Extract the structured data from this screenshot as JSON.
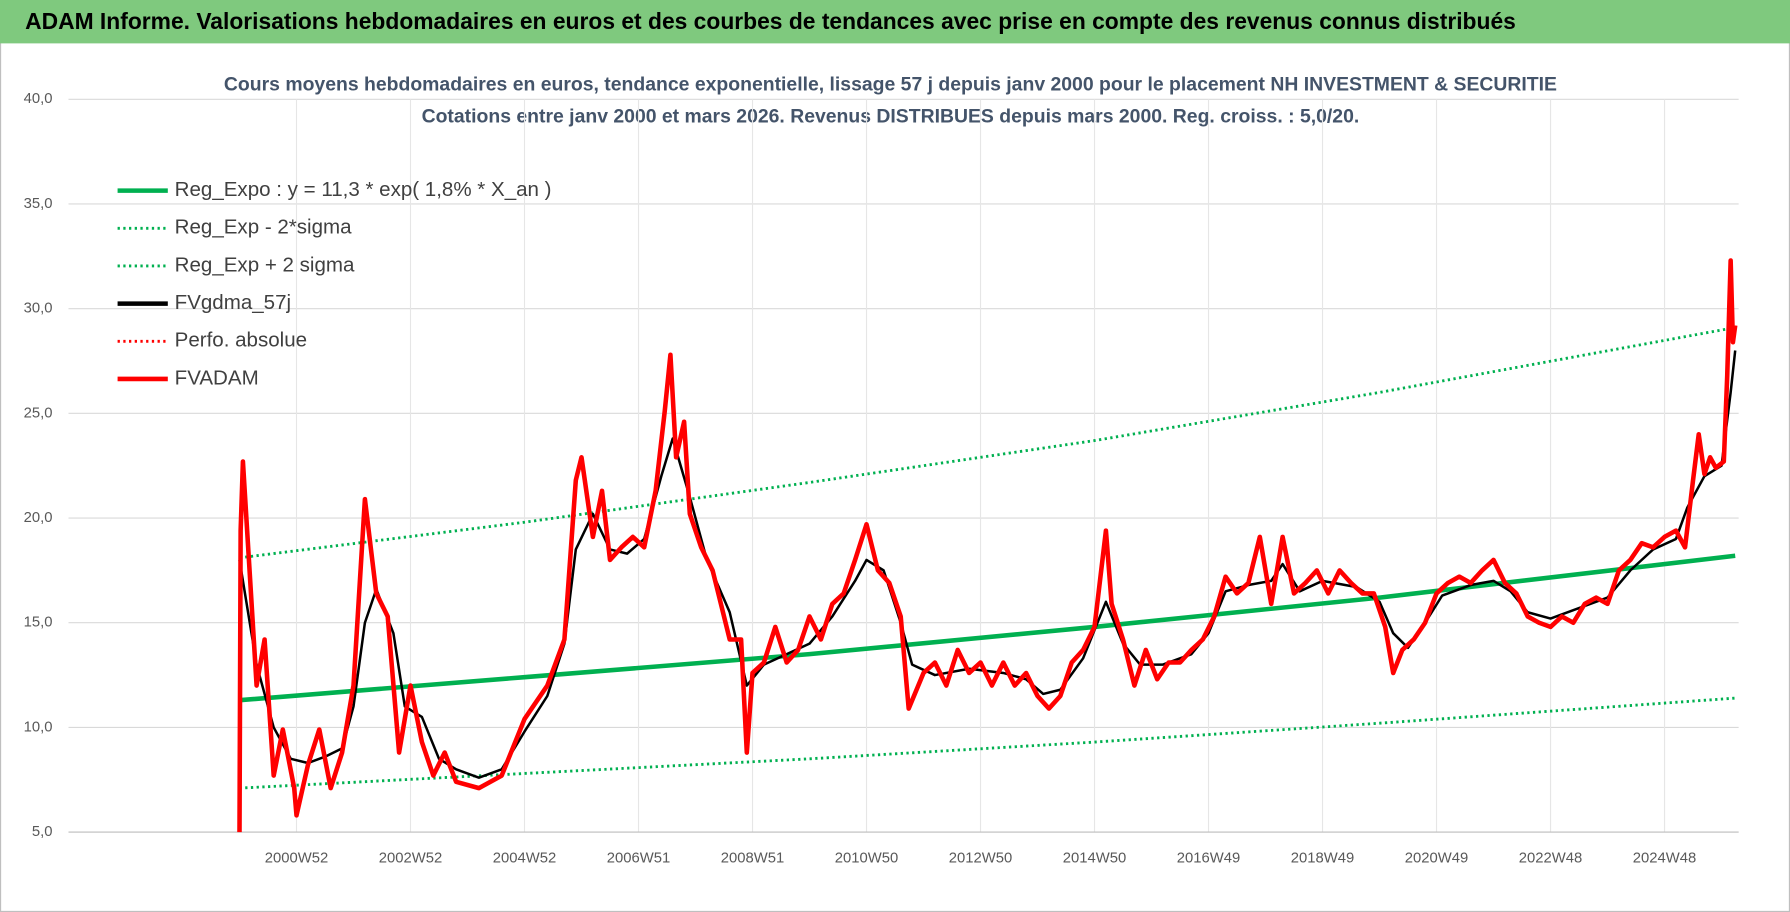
{
  "page_title": "ADAM Informe. Valorisations hebdomadaires en euros et des courbes de tendances avec prise en compte des revenus connus distribués",
  "chart_data": {
    "type": "line",
    "title": "Cours moyens hebdomadaires en euros, tendance exponentielle, lissage 57 j depuis janv 2000  pour le placement NH INVESTMENT & SECURITIE",
    "subtitle": "Cotations entre janv 2000 et mars 2026. Revenus DISTRIBUES depuis mars 2000. Reg. croiss. : 5,0/20.",
    "xlim": [
      1997,
      2026.3
    ],
    "xticks": [
      {
        "value": 2001,
        "label": "2000W52"
      },
      {
        "value": 2003,
        "label": "2002W52"
      },
      {
        "value": 2005,
        "label": "2004W52"
      },
      {
        "value": 2007,
        "label": "2006W51"
      },
      {
        "value": 2009,
        "label": "2008W51"
      },
      {
        "value": 2011,
        "label": "2010W50"
      },
      {
        "value": 2013,
        "label": "2012W50"
      },
      {
        "value": 2015,
        "label": "2014W50"
      },
      {
        "value": 2017,
        "label": "2016W49"
      },
      {
        "value": 2019,
        "label": "2018W49"
      },
      {
        "value": 2021,
        "label": "2020W49"
      },
      {
        "value": 2023,
        "label": "2022W48"
      },
      {
        "value": 2025,
        "label": "2024W48"
      }
    ],
    "ylim": [
      5,
      40
    ],
    "yticks": [
      {
        "value": 5,
        "label": "5,0"
      },
      {
        "value": 10,
        "label": "10,0"
      },
      {
        "value": 15,
        "label": "15,0"
      },
      {
        "value": 20,
        "label": "20,0"
      },
      {
        "value": 25,
        "label": "25,0"
      },
      {
        "value": 30,
        "label": "30,0"
      },
      {
        "value": 35,
        "label": "35,0"
      },
      {
        "value": 40,
        "label": "40,0"
      }
    ],
    "grid": true,
    "legend": "top-left",
    "series": [
      {
        "name": "Reg_Expo : y = 11,3 * exp( 1,8% *  X_an )",
        "color": "#00b050",
        "line_style": "solid",
        "x": [
          2000,
          2005,
          2010,
          2015,
          2020,
          2026.24
        ],
        "values": [
          11.3,
          12.4,
          13.5,
          14.8,
          16.2,
          18.2
        ]
      },
      {
        "name": "Reg_Exp - 2*sigma",
        "color": "#00b050",
        "line_style": "dotted",
        "x": [
          2000,
          2005,
          2010,
          2015,
          2020,
          2026.24
        ],
        "values": [
          7.1,
          7.8,
          8.5,
          9.3,
          10.2,
          11.4
        ]
      },
      {
        "name": "Reg_Exp + 2 sigma",
        "color": "#00b050",
        "line_style": "dotted",
        "x": [
          2000,
          2005,
          2010,
          2015,
          2020,
          2026.24
        ],
        "values": [
          18.1,
          19.8,
          21.7,
          23.7,
          26.0,
          29.1
        ]
      },
      {
        "name": "FVgdma_57j",
        "color": "#000000",
        "line_style": "solid",
        "x": [
          2000.0,
          2000.3,
          2000.6,
          2000.9,
          2001.2,
          2001.5,
          2001.8,
          2002.0,
          2002.2,
          2002.4,
          2002.7,
          2002.9,
          2003.2,
          2003.5,
          2003.8,
          2004.2,
          2004.6,
          2005.0,
          2005.4,
          2005.7,
          2005.9,
          2006.2,
          2006.5,
          2006.8,
          2007.1,
          2007.4,
          2007.6,
          2007.9,
          2008.2,
          2008.6,
          2008.9,
          2009.2,
          2009.6,
          2010.0,
          2010.4,
          2010.8,
          2011.0,
          2011.3,
          2011.6,
          2011.8,
          2012.2,
          2012.8,
          2013.4,
          2013.8,
          2014.1,
          2014.4,
          2014.8,
          2015.2,
          2015.5,
          2015.8,
          2016.2,
          2016.7,
          2017.0,
          2017.3,
          2017.7,
          2018.1,
          2018.3,
          2018.6,
          2019.0,
          2019.6,
          2020.0,
          2020.24,
          2020.5,
          2020.8,
          2021.1,
          2021.6,
          2022.0,
          2022.3,
          2022.6,
          2023.0,
          2023.5,
          2024.0,
          2024.4,
          2024.8,
          2025.2,
          2025.4,
          2025.7,
          2026.0,
          2026.16,
          2026.24
        ],
        "values": [
          18,
          13,
          10,
          8.5,
          8.3,
          8.6,
          9,
          11,
          15,
          16.6,
          14.5,
          11,
          10.5,
          8.5,
          8,
          7.6,
          8,
          9.8,
          11.5,
          14,
          18.5,
          20.2,
          18.5,
          18.3,
          19,
          22,
          23.8,
          21,
          18,
          15.5,
          12,
          13,
          13.5,
          14,
          15.3,
          17,
          18,
          17.5,
          15,
          13,
          12.5,
          12.8,
          12.6,
          12.3,
          11.6,
          11.8,
          13.3,
          16,
          14,
          13,
          13,
          13.5,
          14.5,
          16.5,
          16.8,
          17,
          17.8,
          16.5,
          17,
          16.7,
          16,
          14.5,
          13.8,
          15,
          16.3,
          16.8,
          17,
          16.5,
          15.5,
          15.2,
          15.7,
          16.2,
          17.5,
          18.5,
          19,
          20.5,
          22,
          22.5,
          26,
          28
        ]
      },
      {
        "name": "Perfo. absolue",
        "color": "#ff0000",
        "line_style": "dotted",
        "x": [],
        "values": []
      },
      {
        "name": "FVADAM",
        "color": "#ff0000",
        "line_style": "solid",
        "x": [
          2000.0,
          2000.02,
          2000.06,
          2000.3,
          2000.44,
          2000.6,
          2000.76,
          2000.96,
          2001.0,
          2001.2,
          2001.4,
          2001.6,
          2001.8,
          2002.0,
          2002.2,
          2002.4,
          2002.6,
          2002.8,
          2003.0,
          2003.2,
          2003.4,
          2003.6,
          2003.8,
          2004.2,
          2004.6,
          2005.0,
          2005.4,
          2005.7,
          2005.9,
          2006.0,
          2006.2,
          2006.36,
          2006.5,
          2006.7,
          2006.9,
          2007.1,
          2007.3,
          2007.46,
          2007.56,
          2007.66,
          2007.8,
          2007.9,
          2008.1,
          2008.3,
          2008.6,
          2008.8,
          2008.9,
          2009.0,
          2009.2,
          2009.4,
          2009.6,
          2009.8,
          2010.0,
          2010.2,
          2010.4,
          2010.6,
          2010.8,
          2011.0,
          2011.2,
          2011.4,
          2011.6,
          2011.74,
          2012.0,
          2012.2,
          2012.4,
          2012.6,
          2012.8,
          2013.0,
          2013.2,
          2013.4,
          2013.6,
          2013.8,
          2014.0,
          2014.2,
          2014.4,
          2014.6,
          2014.8,
          2015.0,
          2015.2,
          2015.3,
          2015.5,
          2015.7,
          2015.9,
          2016.1,
          2016.3,
          2016.5,
          2016.7,
          2016.9,
          2017.1,
          2017.3,
          2017.5,
          2017.7,
          2017.9,
          2018.1,
          2018.3,
          2018.5,
          2018.7,
          2018.9,
          2019.1,
          2019.3,
          2019.5,
          2019.7,
          2019.9,
          2020.1,
          2020.24,
          2020.4,
          2020.6,
          2020.8,
          2021.0,
          2021.2,
          2021.4,
          2021.6,
          2021.8,
          2022.0,
          2022.2,
          2022.4,
          2022.6,
          2022.8,
          2023.0,
          2023.2,
          2023.4,
          2023.6,
          2023.8,
          2024.0,
          2024.2,
          2024.4,
          2024.6,
          2024.8,
          2025.0,
          2025.2,
          2025.36,
          2025.5,
          2025.6,
          2025.7,
          2025.8,
          2025.9,
          2026.04,
          2026.1,
          2026.16,
          2026.2,
          2026.24
        ],
        "values": [
          5.0,
          19.4,
          22.7,
          12.0,
          14.2,
          7.7,
          9.9,
          7.1,
          5.8,
          8.2,
          9.9,
          7.1,
          8.8,
          12.0,
          20.9,
          16.4,
          15.3,
          8.8,
          12.0,
          9.3,
          7.7,
          8.8,
          7.4,
          7.1,
          7.7,
          10.4,
          12.0,
          14.2,
          21.8,
          22.9,
          19.1,
          21.3,
          18.0,
          18.6,
          19.1,
          18.6,
          21.3,
          25.1,
          27.8,
          22.9,
          24.6,
          20.2,
          18.6,
          17.5,
          14.2,
          14.2,
          8.8,
          12.6,
          13.1,
          14.8,
          13.1,
          13.7,
          15.3,
          14.2,
          15.9,
          16.4,
          18.0,
          19.7,
          17.5,
          16.9,
          15.3,
          10.9,
          12.6,
          13.1,
          12.0,
          13.7,
          12.6,
          13.1,
          12.0,
          13.1,
          12.0,
          12.6,
          11.5,
          10.9,
          11.5,
          13.1,
          13.7,
          14.8,
          19.4,
          15.9,
          14.2,
          12.0,
          13.7,
          12.3,
          13.1,
          13.1,
          13.7,
          14.2,
          15.3,
          17.2,
          16.4,
          16.9,
          19.1,
          15.9,
          19.1,
          16.4,
          16.9,
          17.5,
          16.4,
          17.5,
          16.9,
          16.4,
          16.4,
          14.8,
          12.6,
          13.7,
          14.2,
          15.0,
          16.4,
          16.9,
          17.2,
          16.9,
          17.5,
          18.0,
          16.9,
          16.4,
          15.3,
          15.0,
          14.8,
          15.3,
          15.0,
          15.9,
          16.2,
          15.9,
          17.5,
          18.0,
          18.8,
          18.6,
          19.1,
          19.4,
          18.6,
          21.8,
          24.0,
          22.1,
          22.9,
          22.4,
          22.7,
          26.8,
          32.3,
          28.4,
          29.2
        ]
      }
    ]
  }
}
